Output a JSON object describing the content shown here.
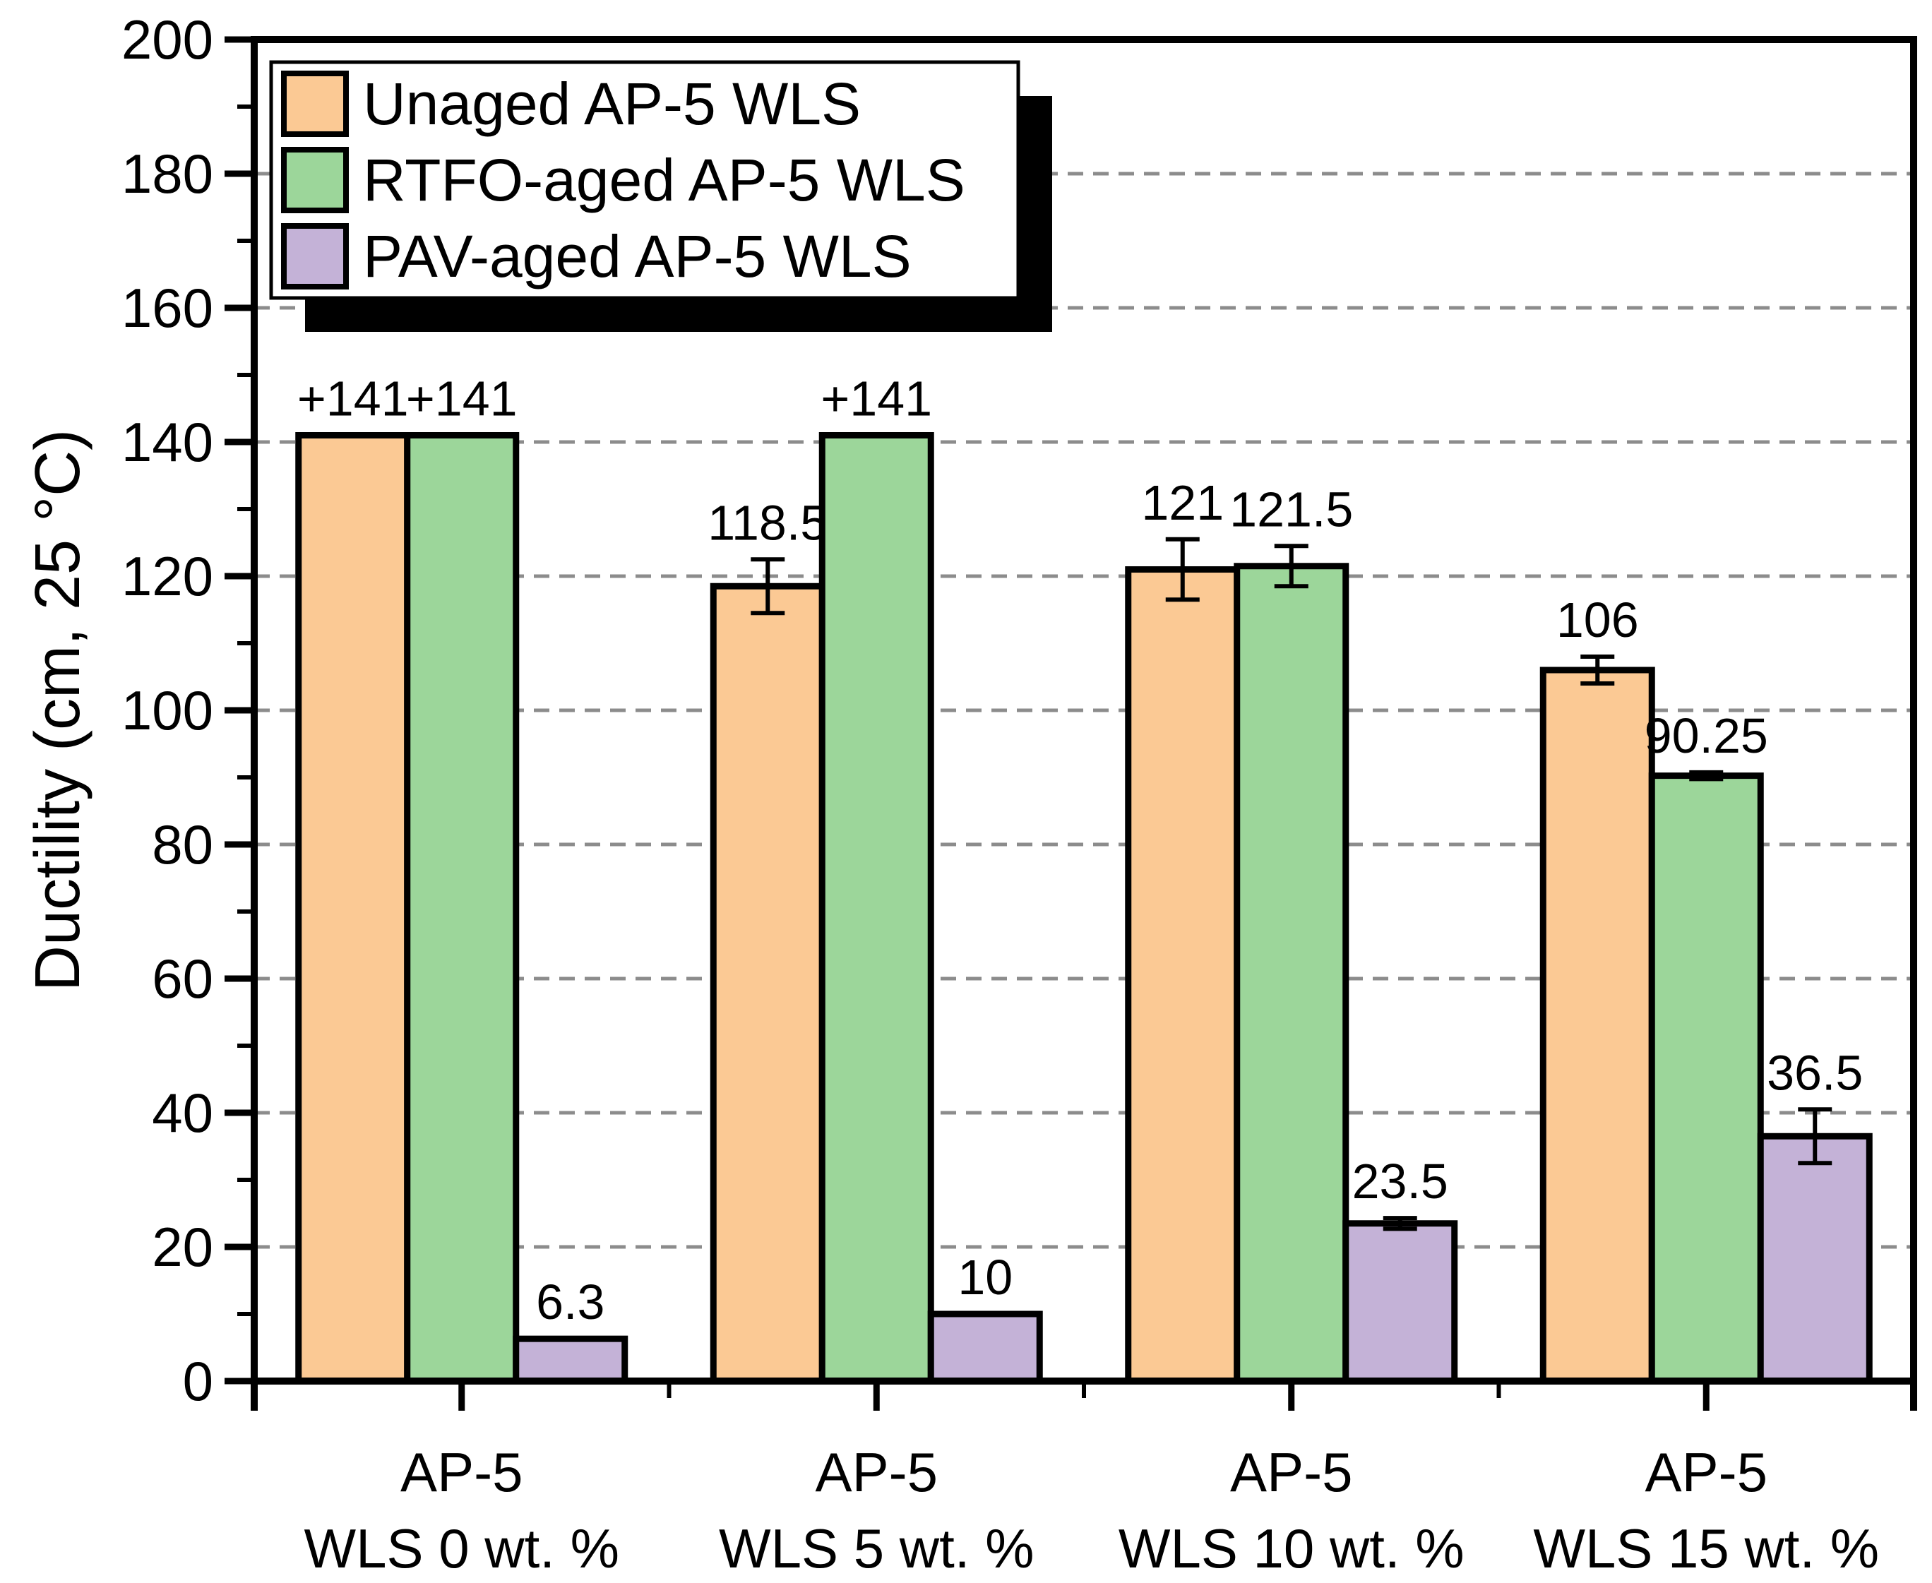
{
  "chart_data": {
    "type": "bar",
    "title": "",
    "xlabel": "",
    "ylabel": "Ductility (cm, 25 °C)",
    "ylim": [
      0,
      200
    ],
    "yticks": [
      0,
      20,
      40,
      60,
      80,
      100,
      120,
      140,
      160,
      180,
      200
    ],
    "ytick_minor_step": 10,
    "grid": "horizontal-dashed-every-20",
    "legend_position": "top-left-inside",
    "categories": [
      {
        "line1": "AP-5",
        "line2": "WLS 0 wt. %"
      },
      {
        "line1": "AP-5",
        "line2": "WLS 5 wt. %"
      },
      {
        "line1": "AP-5",
        "line2": "WLS 10 wt. %"
      },
      {
        "line1": "AP-5",
        "line2": "WLS 15 wt. %"
      }
    ],
    "series": [
      {
        "name": "Unaged AP-5 WLS",
        "color": "#FBC994",
        "values": [
          141,
          118.5,
          121,
          106
        ],
        "value_labels": [
          "+141",
          "118.5",
          "121",
          "106"
        ],
        "error_bars": [
          null,
          4,
          4.5,
          2
        ]
      },
      {
        "name": "RTFO-aged AP-5 WLS",
        "color": "#9CD69A",
        "values": [
          141,
          141,
          121.5,
          90.25
        ],
        "value_labels": [
          "+141",
          "+141",
          "121.5",
          "90.25"
        ],
        "error_bars": [
          null,
          null,
          3,
          0.5
        ]
      },
      {
        "name": "PAV-aged AP-5 WLS",
        "color": "#C4B2D7",
        "values": [
          6.3,
          10,
          23.5,
          36.5
        ],
        "value_labels": [
          "6.3",
          "10",
          "23.5",
          "36.5"
        ],
        "error_bars": [
          null,
          null,
          0.8,
          4
        ]
      }
    ],
    "style_colors": {
      "bar_border": "#000000",
      "axis": "#000000",
      "gridline": "#8C8C8C",
      "legend_shadow": "#000000",
      "legend_background": "#FFFFFF"
    }
  }
}
